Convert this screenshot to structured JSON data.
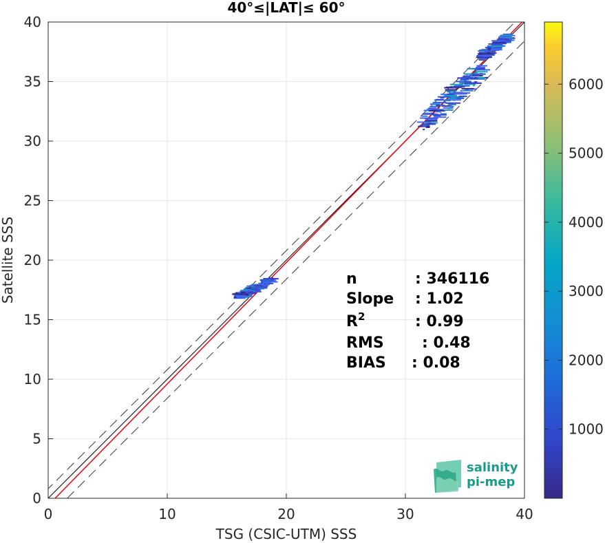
{
  "chart_data": {
    "type": "heatmap",
    "title": "40°≤|LAT|≤ 60°",
    "xlabel": "TSG (CSIC-UTM) SSS",
    "ylabel": "Satellite SSS",
    "xlim": [
      0,
      40
    ],
    "ylim": [
      0,
      40
    ],
    "xticks": [
      "0",
      "10",
      "20",
      "30",
      "40"
    ],
    "yticks": [
      "0",
      "5",
      "10",
      "15",
      "20",
      "25",
      "30",
      "35",
      "40"
    ],
    "grid": true,
    "colorbar": {
      "range": [
        0,
        6900
      ],
      "ticks": [
        "1000",
        "2000",
        "3000",
        "4000",
        "5000",
        "6000"
      ],
      "colormap": "parula"
    },
    "reference_lines": {
      "identity_slope": 1,
      "dashed_offsets": [
        -1.6,
        0.8
      ],
      "fit_line": {
        "color": "#e8000b",
        "slope": 1.02,
        "intercept": -0.6
      }
    },
    "clusters": [
      {
        "x": [
          16,
          18.8
        ],
        "y": [
          17,
          18.4
        ]
      },
      {
        "x": [
          31.5,
          36.5
        ],
        "y": [
          31.5,
          36.2
        ]
      },
      {
        "x": [
          36.5,
          38.6
        ],
        "y": [
          37.2,
          38.8
        ]
      }
    ],
    "stats": [
      {
        "name": "n",
        "value": ": 346116"
      },
      {
        "name": "Slope",
        "value": ": 1.02"
      },
      {
        "name": "R",
        "sup": "2",
        "value": ": 0.99"
      },
      {
        "name": "RMS",
        "value": ": 0.48"
      },
      {
        "name": "BIAS",
        "value": ": 0.08"
      }
    ]
  },
  "logo": {
    "line1": "salinity",
    "line2": "pi-mep"
  }
}
